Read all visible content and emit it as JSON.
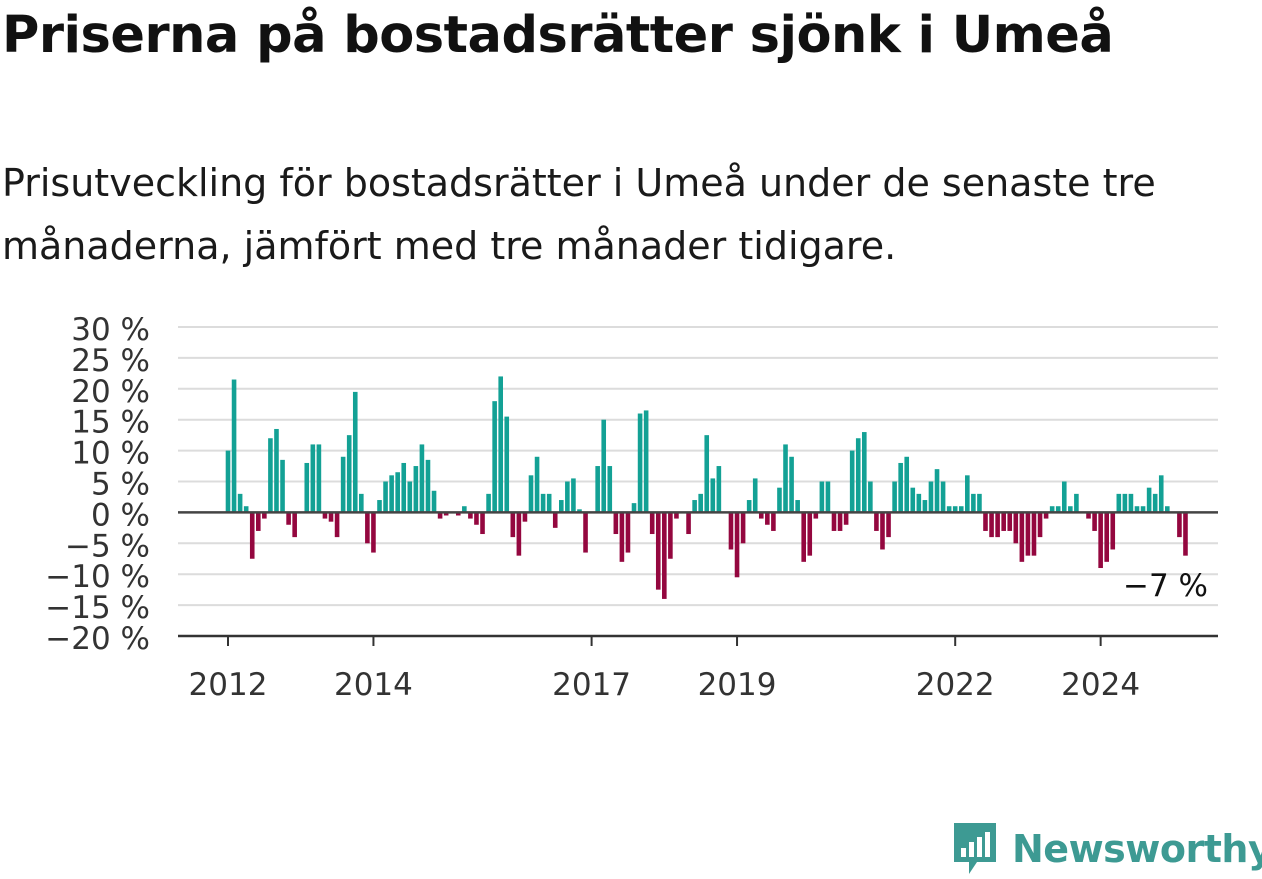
{
  "title": "Priserna på bostadsrätter sjönk i Umeå",
  "subtitle": "Prisutveckling för bostadsrätter i Umeå under de senaste tre månaderna, jämfört med tre månader tidigare.",
  "brand": {
    "name": "Newsworthy",
    "icon": "newsworthy-logo-icon",
    "color": "#3d9a93"
  },
  "chart_data": {
    "type": "bar",
    "title": "",
    "xlabel": "",
    "ylabel": "",
    "ylim": [
      -20,
      30
    ],
    "yticks": [
      30,
      25,
      20,
      15,
      10,
      5,
      0,
      -5,
      -10,
      -15,
      -20
    ],
    "ytick_labels": [
      "30 %",
      "25 %",
      "20 %",
      "15 %",
      "10 %",
      "5 %",
      "0 %",
      "−5 %",
      "−10 %",
      "−15 %",
      "−20 %"
    ],
    "xticks": [
      {
        "label": "2012",
        "index": 0
      },
      {
        "label": "2014",
        "index": 24
      },
      {
        "label": "2017",
        "index": 60
      },
      {
        "label": "2019",
        "index": 84
      },
      {
        "label": "2022",
        "index": 120
      },
      {
        "label": "2024",
        "index": 144
      }
    ],
    "grid": true,
    "positive_color": "#13a195",
    "negative_color": "#94073f",
    "annotation": {
      "text": "−7 %",
      "index": 154
    },
    "values": [
      10,
      21.5,
      3,
      1,
      -7.5,
      -3,
      -1,
      12,
      13.5,
      8.5,
      -2,
      -4,
      0,
      8,
      11,
      11,
      -1,
      -1.5,
      -4,
      9,
      12.5,
      19.5,
      3,
      -5,
      -6.5,
      2,
      5,
      6,
      6.5,
      8,
      5,
      7.5,
      11,
      8.5,
      3.5,
      -1,
      -0.5,
      0,
      -0.5,
      1,
      -1,
      -2,
      -3.5,
      3,
      18,
      22,
      15.5,
      -4,
      -7,
      -1.5,
      6,
      9,
      3,
      3,
      -2.5,
      2,
      5,
      5.5,
      0.5,
      -6.5,
      0,
      7.5,
      15,
      7.5,
      -3.5,
      -8,
      -6.5,
      1.5,
      16,
      16.5,
      -3.5,
      -12.5,
      -14,
      -7.5,
      -1,
      0,
      -3.5,
      2,
      3,
      12.5,
      5.5,
      7.5,
      0,
      -6,
      -10.5,
      -5,
      2,
      5.5,
      -1,
      -2,
      -3,
      4,
      11,
      9,
      2,
      -8,
      -7,
      -1,
      5,
      5,
      -3,
      -3,
      -2,
      10,
      12,
      13,
      5,
      -3,
      -6,
      -4,
      5,
      8,
      9,
      4,
      3,
      2,
      5,
      7,
      5,
      1,
      1,
      1,
      6,
      3,
      3,
      -3,
      -4,
      -4,
      -3,
      -3,
      -5,
      -8,
      -7,
      -7,
      -4,
      -1,
      1,
      1,
      5,
      1,
      3,
      0,
      -1,
      -3,
      -9,
      -8,
      -6,
      3,
      3,
      3,
      1,
      1,
      4,
      3,
      6,
      1,
      0,
      -4,
      -7
    ]
  }
}
